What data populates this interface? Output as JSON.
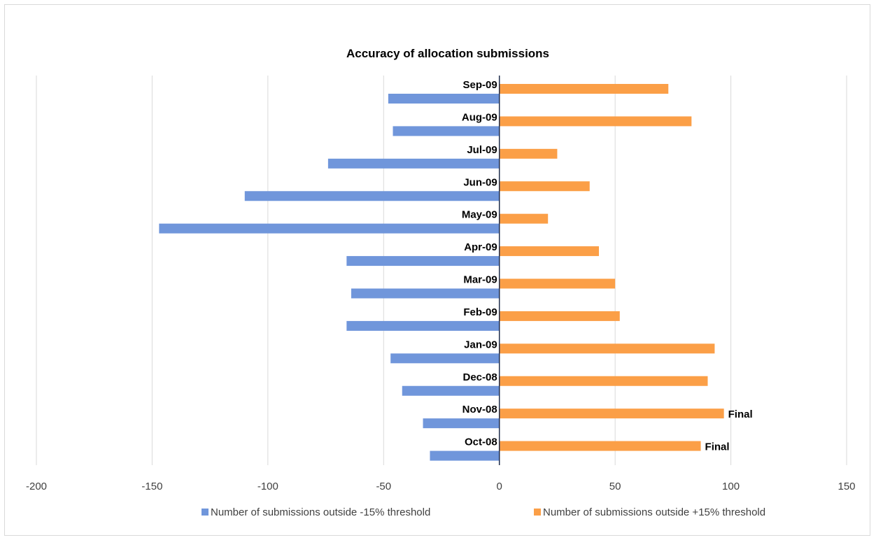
{
  "chart_data": {
    "type": "bar",
    "orientation": "horizontal",
    "title": "Accuracy of allocation submissions",
    "xlabel": "",
    "ylabel": "",
    "xlim": [
      -200,
      150
    ],
    "x_ticks": [
      -200,
      -150,
      -100,
      -50,
      0,
      50,
      100,
      150
    ],
    "grid": true,
    "legend_position": "bottom",
    "categories": [
      "Sep-09",
      "Aug-09",
      "Jul-09",
      "Jun-09",
      "May-09",
      "Apr-09",
      "Mar-09",
      "Feb-09",
      "Jan-09",
      "Dec-08",
      "Nov-08",
      "Oct-08"
    ],
    "series": [
      {
        "name": "Number of submissions outside -15% threshold",
        "color": "#7096db",
        "values": [
          -48,
          -46,
          -74,
          -110,
          -147,
          -66,
          -64,
          -66,
          -47,
          -42,
          -33,
          -30
        ]
      },
      {
        "name": "Number of submissions outside +15% threshold",
        "color": "#fb9f47",
        "values": [
          73,
          83,
          25,
          39,
          21,
          43,
          50,
          52,
          93,
          90,
          97,
          87
        ]
      }
    ],
    "annotations": [
      {
        "category": "Nov-08",
        "series": 1,
        "text": "Final"
      },
      {
        "category": "Oct-08",
        "series": 1,
        "text": "Final"
      }
    ]
  }
}
